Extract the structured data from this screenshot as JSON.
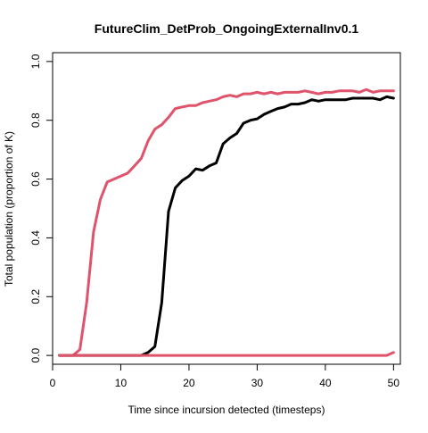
{
  "chart_data": {
    "type": "line",
    "title": "FutureClim_DetProb_OngoingExternalInv0.1",
    "xlabel": "Time since incursion detected (timesteps)",
    "ylabel": "Total population (proportion of K)",
    "xlim": [
      0,
      51
    ],
    "ylim": [
      -0.03,
      1.03
    ],
    "xticks": [
      "0",
      "10",
      "20",
      "30",
      "40",
      "50"
    ],
    "yticks": [
      "0.0",
      "0.2",
      "0.4",
      "0.6",
      "0.8",
      "1.0"
    ],
    "grid": false,
    "legend": "none",
    "x": [
      1,
      2,
      3,
      4,
      5,
      6,
      7,
      8,
      9,
      10,
      11,
      12,
      13,
      14,
      15,
      16,
      17,
      18,
      19,
      20,
      21,
      22,
      23,
      24,
      25,
      26,
      27,
      28,
      29,
      30,
      31,
      32,
      33,
      34,
      35,
      36,
      37,
      38,
      39,
      40,
      41,
      42,
      43,
      44,
      45,
      46,
      47,
      48,
      49,
      50
    ],
    "series": [
      {
        "color": "#DF536B",
        "values": [
          0,
          0,
          0,
          0.02,
          0.18,
          0.42,
          0.53,
          0.59,
          0.6,
          0.61,
          0.62,
          0.645,
          0.67,
          0.73,
          0.77,
          0.785,
          0.81,
          0.84,
          0.845,
          0.85,
          0.85,
          0.86,
          0.865,
          0.87,
          0.88,
          0.885,
          0.88,
          0.89,
          0.89,
          0.895,
          0.89,
          0.895,
          0.89,
          0.895,
          0.895,
          0.895,
          0.9,
          0.895,
          0.89,
          0.895,
          0.895,
          0.9,
          0.9,
          0.9,
          0.895,
          0.905,
          0.895,
          0.9,
          0.9,
          0.9
        ]
      },
      {
        "color": "#000000",
        "values": [
          0,
          0,
          0,
          0,
          0,
          0,
          0,
          0,
          0,
          0,
          0,
          0,
          0,
          0.01,
          0.03,
          0.18,
          0.49,
          0.57,
          0.595,
          0.61,
          0.635,
          0.63,
          0.645,
          0.655,
          0.72,
          0.74,
          0.755,
          0.79,
          0.8,
          0.805,
          0.82,
          0.83,
          0.84,
          0.845,
          0.855,
          0.855,
          0.86,
          0.87,
          0.865,
          0.87,
          0.87,
          0.87,
          0.87,
          0.875,
          0.875,
          0.875,
          0.875,
          0.87,
          0.88,
          0.875
        ]
      },
      {
        "color": "#DF536B",
        "values": [
          0,
          0,
          0,
          0,
          0,
          0,
          0,
          0,
          0,
          0,
          0,
          0,
          0,
          0,
          0,
          0,
          0,
          0,
          0,
          0,
          0,
          0,
          0,
          0,
          0,
          0,
          0,
          0,
          0,
          0,
          0,
          0,
          0,
          0,
          0,
          0,
          0,
          0,
          0,
          0,
          0,
          0,
          0,
          0,
          0,
          0,
          0,
          0,
          0,
          0.01
        ]
      }
    ]
  }
}
